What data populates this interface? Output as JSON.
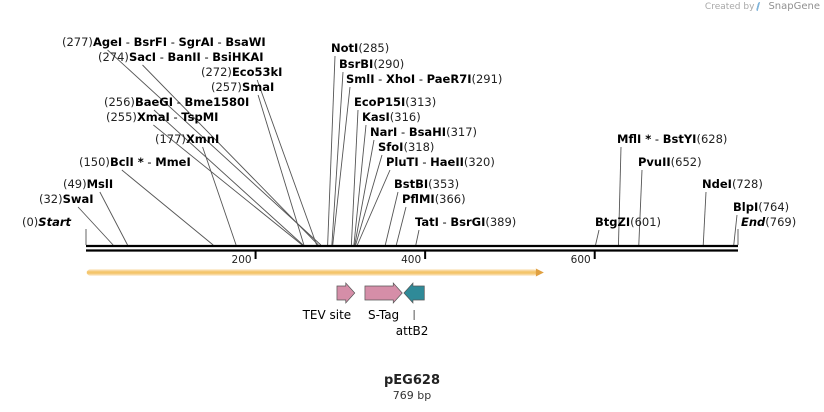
{
  "branding": {
    "created_by": "Created by",
    "product": "SnapGene"
  },
  "plasmid": {
    "name": "pEG628",
    "length_label": "769 bp",
    "length_bp": 769
  },
  "enzyme_sites": [
    {
      "pos": "(277)",
      "bp": 277,
      "names": [
        "AgeI",
        "BsrFI",
        "SgrAI",
        "BsaWI"
      ]
    },
    {
      "pos": "(274)",
      "bp": 274,
      "names": [
        "SacI",
        "BanII",
        "BsiHKAI"
      ]
    },
    {
      "pos": "(272)",
      "bp": 272,
      "names": [
        "Eco53kI"
      ]
    },
    {
      "pos": "(257)",
      "bp": 257,
      "names": [
        "SmaI"
      ]
    },
    {
      "pos": "(256)",
      "bp": 256,
      "names": [
        "BaeGI",
        "Bme1580I"
      ]
    },
    {
      "pos": "(255)",
      "bp": 255,
      "names": [
        "XmaI",
        "TspMI"
      ]
    },
    {
      "pos": "(177)",
      "bp": 177,
      "names": [
        "XmnI"
      ]
    },
    {
      "pos": "(150)",
      "bp": 150,
      "names": [
        "BclI",
        "MmeI"
      ],
      "star": [
        true,
        false
      ]
    },
    {
      "pos": "(49)",
      "bp": 49,
      "names": [
        "MslI"
      ]
    },
    {
      "pos": "(32)",
      "bp": 32,
      "names": [
        "SwaI"
      ]
    },
    {
      "pos": "(0)",
      "bp": 0,
      "names": [
        "Start"
      ],
      "italic": true
    },
    {
      "pos": "(285)",
      "bp": 285,
      "names": [
        "NotI"
      ]
    },
    {
      "pos": "(290)",
      "bp": 290,
      "names": [
        "BsrBI"
      ]
    },
    {
      "pos": "(291)",
      "bp": 291,
      "names": [
        "SmlI",
        "XhoI",
        "PaeR7I"
      ]
    },
    {
      "pos": "(313)",
      "bp": 313,
      "names": [
        "EcoP15I"
      ]
    },
    {
      "pos": "(316)",
      "bp": 316,
      "names": [
        "KasI"
      ]
    },
    {
      "pos": "(317)",
      "bp": 317,
      "names": [
        "NarI",
        "BsaHI"
      ]
    },
    {
      "pos": "(318)",
      "bp": 318,
      "names": [
        "SfoI"
      ]
    },
    {
      "pos": "(320)",
      "bp": 320,
      "names": [
        "PluTI",
        "HaeII"
      ]
    },
    {
      "pos": "(353)",
      "bp": 353,
      "names": [
        "BstBI"
      ]
    },
    {
      "pos": "(366)",
      "bp": 366,
      "names": [
        "PflMI"
      ]
    },
    {
      "pos": "(389)",
      "bp": 389,
      "names": [
        "TatI",
        "BsrGI"
      ]
    },
    {
      "pos": "(601)",
      "bp": 601,
      "names": [
        "BtgZI"
      ]
    },
    {
      "pos": "(628)",
      "bp": 628,
      "names": [
        "MflI",
        "BstYI"
      ],
      "star": [
        true,
        false
      ]
    },
    {
      "pos": "(652)",
      "bp": 652,
      "names": [
        "PvuII"
      ]
    },
    {
      "pos": "(728)",
      "bp": 728,
      "names": [
        "NdeI"
      ]
    },
    {
      "pos": "(764)",
      "bp": 764,
      "names": [
        "BlpI"
      ]
    },
    {
      "pos": "(769)",
      "bp": 769,
      "names": [
        "End"
      ],
      "italic": true
    }
  ],
  "axis": {
    "ticks": [
      200,
      400,
      600
    ]
  },
  "features": [
    {
      "name": "ORF",
      "start": 1,
      "end": 540,
      "strand": "forward",
      "color": "#f4c56a",
      "label": ""
    },
    {
      "name": "TEV site",
      "label": "TEV site",
      "start": 296,
      "end": 317,
      "strand": "forward",
      "color": "#d58ea8"
    },
    {
      "name": "S-Tag",
      "label": "S-Tag",
      "start": 329,
      "end": 373,
      "strand": "forward",
      "color": "#d58ea8"
    },
    {
      "name": "attB2",
      "label": "attB2",
      "start": 375,
      "end": 399,
      "strand": "reverse",
      "color": "#2f8a98"
    }
  ]
}
